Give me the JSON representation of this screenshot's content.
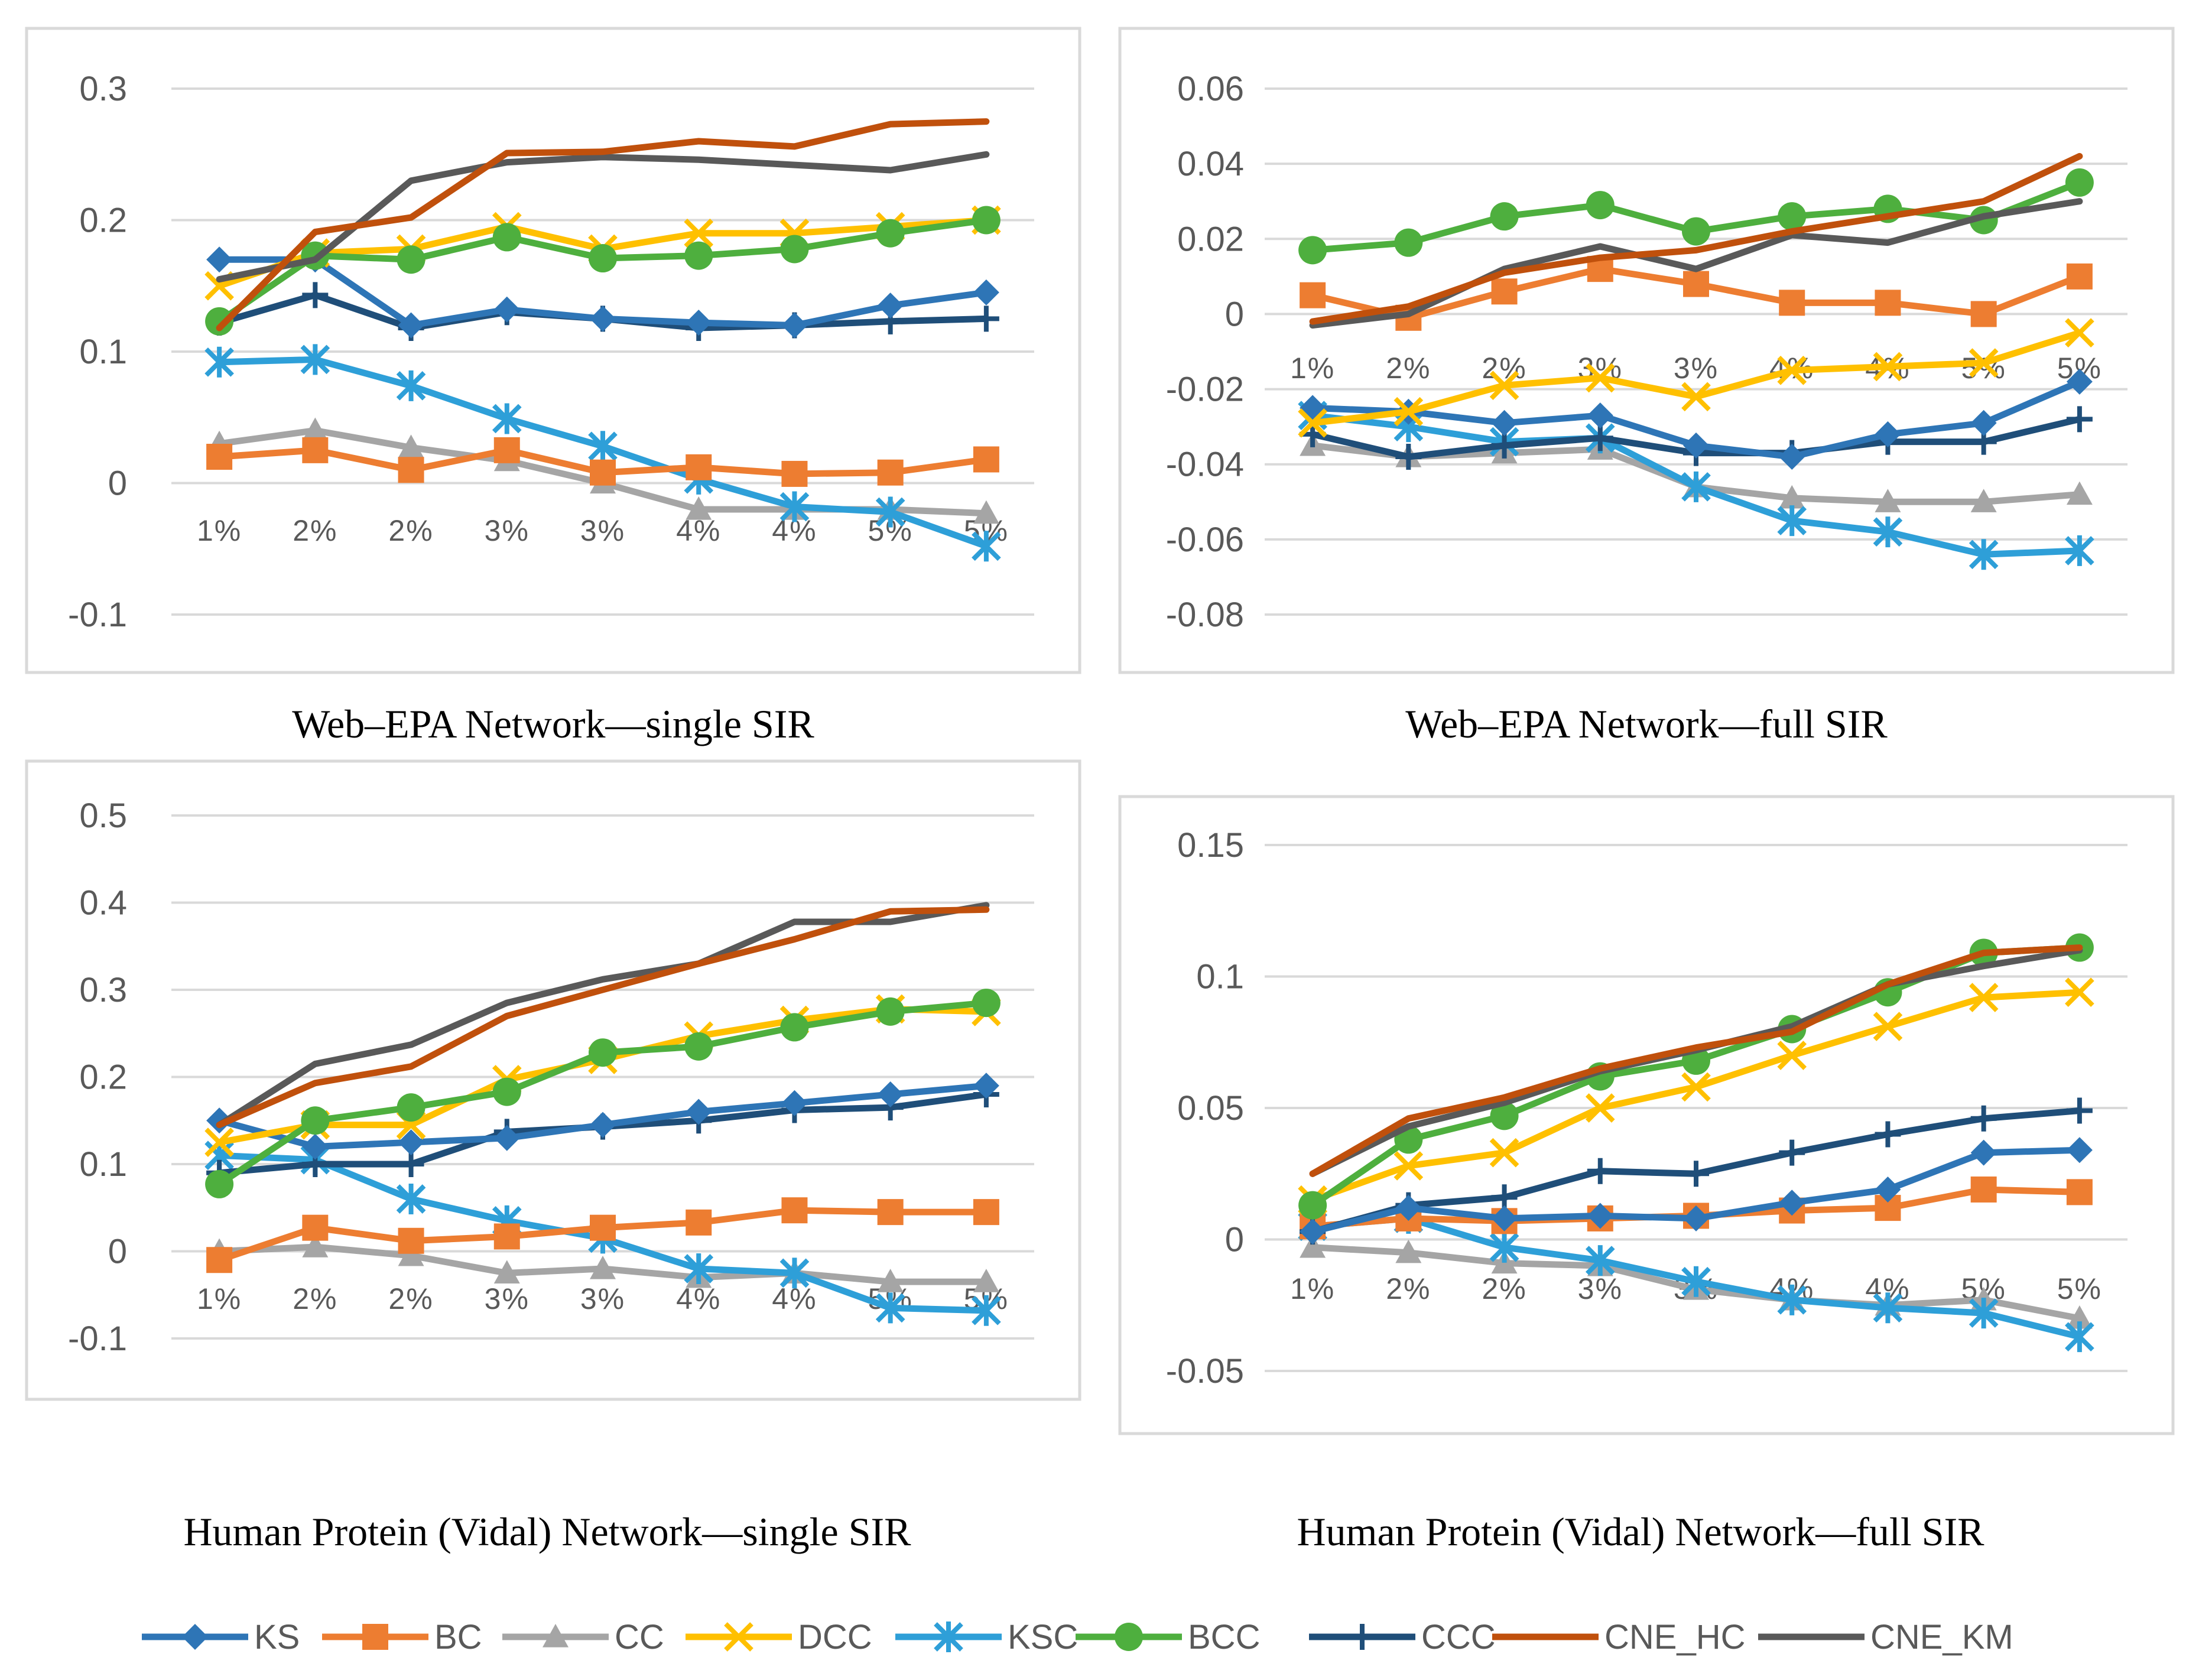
{
  "legend": [
    {
      "name": "KS",
      "color": "#2E75B6",
      "marker": "diamond"
    },
    {
      "name": "BC",
      "color": "#ED7D31",
      "marker": "square"
    },
    {
      "name": "CC",
      "color": "#A5A5A5",
      "marker": "triangle"
    },
    {
      "name": "DCC",
      "color": "#FFC000",
      "marker": "x"
    },
    {
      "name": "KSC",
      "color": "#2E9FD8",
      "marker": "star"
    },
    {
      "name": "BCC",
      "color": "#4EAF3E",
      "marker": "circle"
    },
    {
      "name": "CCC",
      "color": "#1F4E79",
      "marker": "plus"
    },
    {
      "name": "CNE_HC",
      "color": "#C0500C",
      "marker": "none"
    },
    {
      "name": "CNE_KM",
      "color": "#595959",
      "marker": "none"
    }
  ],
  "chart_data": [
    {
      "type": "line",
      "title": "Web–EPA Network—single SIR",
      "categories": [
        "1%",
        "2%",
        "2%",
        "3%",
        "3%",
        "4%",
        "4%",
        "5%",
        "5%"
      ],
      "yticks": [
        "0.3",
        "0.2",
        "0.1",
        "0",
        "-0.1"
      ],
      "ylim": [
        -0.1,
        0.3
      ],
      "series": [
        {
          "name": "KS",
          "values": [
            0.17,
            0.17,
            0.12,
            0.132,
            0.125,
            0.122,
            0.12,
            0.135,
            0.145
          ]
        },
        {
          "name": "BC",
          "values": [
            0.02,
            0.025,
            0.01,
            0.025,
            0.008,
            0.012,
            0.007,
            0.008,
            0.018
          ]
        },
        {
          "name": "CC",
          "values": [
            0.03,
            0.04,
            0.027,
            0.017,
            0.0,
            -0.02,
            -0.02,
            -0.02,
            -0.023
          ]
        },
        {
          "name": "DCC",
          "values": [
            0.15,
            0.175,
            0.178,
            0.195,
            0.178,
            0.19,
            0.19,
            0.195,
            0.2
          ]
        },
        {
          "name": "KSC",
          "values": [
            0.092,
            0.094,
            0.074,
            0.049,
            0.028,
            0.003,
            -0.018,
            -0.022,
            -0.048
          ]
        },
        {
          "name": "BCC",
          "values": [
            0.123,
            0.173,
            0.17,
            0.187,
            0.171,
            0.173,
            0.178,
            0.19,
            0.2
          ]
        },
        {
          "name": "CCC",
          "values": [
            0.122,
            0.143,
            0.118,
            0.13,
            0.125,
            0.118,
            0.12,
            0.123,
            0.125
          ]
        },
        {
          "name": "CNE_HC",
          "values": [
            0.118,
            0.191,
            0.202,
            0.251,
            0.252,
            0.26,
            0.256,
            0.273,
            0.275
          ]
        },
        {
          "name": "CNE_KM",
          "values": [
            0.155,
            0.17,
            0.23,
            0.244,
            0.248,
            0.246,
            0.242,
            0.238,
            0.25
          ]
        }
      ]
    },
    {
      "type": "line",
      "title": "Web–EPA Network—full SIR",
      "categories": [
        "1%",
        "2%",
        "2%",
        "3%",
        "3%",
        "4%",
        "4%",
        "5%",
        "5%"
      ],
      "yticks": [
        "0.06",
        "0.04",
        "0.02",
        "0",
        "-0.02",
        "-0.04",
        "-0.06",
        "-0.08"
      ],
      "ylim": [
        -0.08,
        0.06
      ],
      "series": [
        {
          "name": "KS",
          "values": [
            -0.025,
            -0.026,
            -0.029,
            -0.027,
            -0.035,
            -0.038,
            -0.032,
            -0.029,
            -0.018
          ]
        },
        {
          "name": "BC",
          "values": [
            0.005,
            -0.001,
            0.006,
            0.012,
            0.008,
            0.003,
            0.003,
            0.0,
            0.01
          ]
        },
        {
          "name": "CC",
          "values": [
            -0.035,
            -0.038,
            -0.037,
            -0.036,
            -0.046,
            -0.049,
            -0.05,
            -0.05,
            -0.048
          ]
        },
        {
          "name": "DCC",
          "values": [
            -0.029,
            -0.026,
            -0.019,
            -0.017,
            -0.022,
            -0.015,
            -0.014,
            -0.013,
            -0.005
          ]
        },
        {
          "name": "KSC",
          "values": [
            -0.027,
            -0.03,
            -0.034,
            -0.033,
            -0.046,
            -0.055,
            -0.058,
            -0.064,
            -0.063
          ]
        },
        {
          "name": "BCC",
          "values": [
            0.017,
            0.019,
            0.026,
            0.029,
            0.022,
            0.026,
            0.028,
            0.025,
            0.035
          ]
        },
        {
          "name": "CCC",
          "values": [
            -0.032,
            -0.038,
            -0.035,
            -0.033,
            -0.037,
            -0.037,
            -0.034,
            -0.034,
            -0.028
          ]
        },
        {
          "name": "CNE_HC",
          "values": [
            -0.002,
            0.002,
            0.011,
            0.015,
            0.017,
            0.022,
            0.026,
            0.03,
            0.042
          ]
        },
        {
          "name": "CNE_KM",
          "values": [
            -0.003,
            0.0,
            0.012,
            0.018,
            0.012,
            0.021,
            0.019,
            0.026,
            0.03
          ]
        }
      ]
    },
    {
      "type": "line",
      "title": "Human Protein (Vidal) Network—single SIR",
      "categories": [
        "1%",
        "2%",
        "2%",
        "3%",
        "3%",
        "4%",
        "4%",
        "5%",
        "5%"
      ],
      "yticks": [
        "0.5",
        "0.4",
        "0.3",
        "0.2",
        "0.1",
        "0",
        "-0.1"
      ],
      "ylim": [
        -0.1,
        0.5
      ],
      "series": [
        {
          "name": "KS",
          "values": [
            0.15,
            0.12,
            0.125,
            0.13,
            0.145,
            0.16,
            0.17,
            0.18,
            0.19
          ]
        },
        {
          "name": "BC",
          "values": [
            -0.01,
            0.027,
            0.012,
            0.017,
            0.027,
            0.033,
            0.047,
            0.045,
            0.045
          ]
        },
        {
          "name": "CC",
          "values": [
            0.0,
            0.005,
            -0.005,
            -0.025,
            -0.02,
            -0.03,
            -0.025,
            -0.035,
            -0.035
          ]
        },
        {
          "name": "DCC",
          "values": [
            0.125,
            0.145,
            0.145,
            0.197,
            0.22,
            0.247,
            0.265,
            0.278,
            0.275
          ]
        },
        {
          "name": "KSC",
          "values": [
            0.11,
            0.105,
            0.06,
            0.035,
            0.015,
            -0.02,
            -0.025,
            -0.065,
            -0.068
          ]
        },
        {
          "name": "BCC",
          "values": [
            0.077,
            0.15,
            0.165,
            0.183,
            0.228,
            0.235,
            0.257,
            0.275,
            0.285
          ]
        },
        {
          "name": "CCC",
          "values": [
            0.09,
            0.1,
            0.1,
            0.137,
            0.143,
            0.15,
            0.162,
            0.165,
            0.18
          ]
        },
        {
          "name": "CNE_HC",
          "values": [
            0.145,
            0.193,
            0.212,
            0.27,
            0.3,
            0.33,
            0.358,
            0.39,
            0.392
          ]
        },
        {
          "name": "CNE_KM",
          "values": [
            0.145,
            0.215,
            0.237,
            0.285,
            0.312,
            0.33,
            0.378,
            0.378,
            0.397
          ]
        }
      ]
    },
    {
      "type": "line",
      "title": "Human Protein (Vidal) Network—full SIR",
      "categories": [
        "1%",
        "2%",
        "2%",
        "3%",
        "3%",
        "4%",
        "4%",
        "5%",
        "5%"
      ],
      "yticks": [
        "0.15",
        "0.1",
        "0.05",
        "0",
        "-0.05"
      ],
      "ylim": [
        -0.05,
        0.15
      ],
      "series": [
        {
          "name": "KS",
          "values": [
            0.003,
            0.012,
            0.008,
            0.009,
            0.008,
            0.014,
            0.019,
            0.033,
            0.034
          ]
        },
        {
          "name": "BC",
          "values": [
            0.005,
            0.008,
            0.007,
            0.008,
            0.009,
            0.011,
            0.012,
            0.019,
            0.018
          ]
        },
        {
          "name": "CC",
          "values": [
            -0.003,
            -0.005,
            -0.009,
            -0.01,
            -0.019,
            -0.023,
            -0.025,
            -0.023,
            -0.03
          ]
        },
        {
          "name": "DCC",
          "values": [
            0.015,
            0.028,
            0.033,
            0.05,
            0.058,
            0.07,
            0.081,
            0.092,
            0.094
          ]
        },
        {
          "name": "KSC",
          "values": [
            0.005,
            0.008,
            -0.003,
            -0.008,
            -0.016,
            -0.023,
            -0.026,
            -0.028,
            -0.037
          ]
        },
        {
          "name": "BCC",
          "values": [
            0.013,
            0.038,
            0.047,
            0.062,
            0.068,
            0.08,
            0.094,
            0.109,
            0.111
          ]
        },
        {
          "name": "CCC",
          "values": [
            0.003,
            0.013,
            0.016,
            0.026,
            0.025,
            0.033,
            0.04,
            0.046,
            0.049
          ]
        },
        {
          "name": "CNE_HC",
          "values": [
            0.025,
            0.046,
            0.054,
            0.065,
            0.073,
            0.079,
            0.097,
            0.109,
            0.111
          ]
        },
        {
          "name": "CNE_KM",
          "values": [
            0.025,
            0.043,
            0.052,
            0.064,
            0.072,
            0.081,
            0.097,
            0.104,
            0.11
          ]
        }
      ]
    }
  ]
}
